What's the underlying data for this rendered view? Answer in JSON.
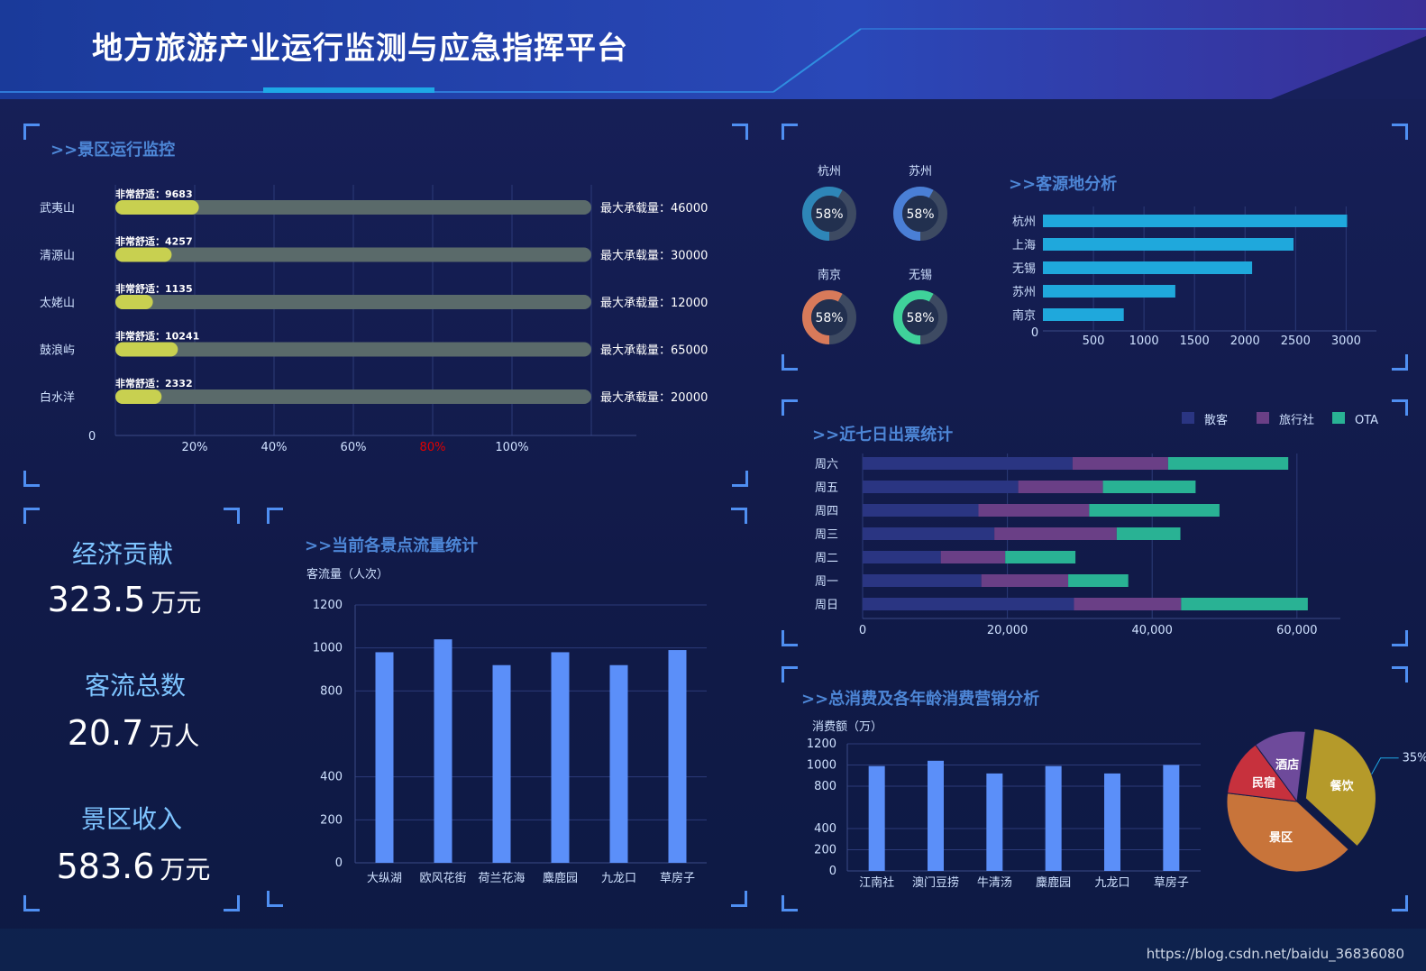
{
  "header": {
    "title": "地方旅游产业运行监测与应急指挥平台"
  },
  "scenic_monitor": {
    "title": ">>景区运行监控",
    "comfort_prefix": "非常舒适：",
    "capacity_prefix": "最大承载量：",
    "zero_label": "0",
    "rows": [
      {
        "name": "武夷山",
        "comfort": 9683,
        "capacity": 46000
      },
      {
        "name": "清源山",
        "comfort": 4257,
        "capacity": 30000
      },
      {
        "name": "太姥山",
        "comfort": 1135,
        "capacity": 12000
      },
      {
        "name": "鼓浪屿",
        "comfort": 10241,
        "capacity": 65000
      },
      {
        "name": "白水洋",
        "comfort": 2332,
        "capacity": 20000
      }
    ],
    "x_ticks": [
      "20%",
      "40%",
      "60%",
      "80%",
      "100%"
    ],
    "highlight_tick": "80%",
    "highlight_color": "#e00000",
    "bar_color": "#c8d050",
    "track_color": "#5a6a6a"
  },
  "stats": [
    {
      "label": "经济贡献",
      "value": "323.5",
      "unit": "万元"
    },
    {
      "label": "客流总数",
      "value": "20.7",
      "unit": "万人"
    },
    {
      "label": "景区收入",
      "value": "583.6",
      "unit": "万元"
    }
  ],
  "flow_panel": {
    "title": ">>当前各景点流量统计"
  },
  "source_panel": {
    "title": ">>客源地分析",
    "donuts": [
      {
        "city": "杭州",
        "label": "58%",
        "value": 0.58,
        "color": "#2e86b8"
      },
      {
        "city": "苏州",
        "label": "58%",
        "value": 0.58,
        "color": "#4a7fd6"
      },
      {
        "city": "南京",
        "label": "58%",
        "value": 0.58,
        "color": "#d87a5a"
      },
      {
        "city": "无锡",
        "label": "58%",
        "value": 0.58,
        "color": "#3fd29a"
      }
    ]
  },
  "tickets_panel": {
    "title": ">>近七日出票统计"
  },
  "consume_panel": {
    "title": ">>总消费及各年龄消费营销分析"
  },
  "chart_data": [
    {
      "type": "bar",
      "title": ">>当前各景点流量统计",
      "ylabel": "客流量（人次）",
      "categories": [
        "大纵湖",
        "欧风花街",
        "荷兰花海",
        "麋鹿园",
        "九龙口",
        "草房子"
      ],
      "values": [
        980,
        1040,
        920,
        980,
        920,
        990
      ],
      "y_ticks": [
        "0",
        "200",
        "400",
        "800",
        "1000",
        "1200"
      ],
      "ylim": [
        0,
        1200
      ],
      "color": "#5b8ff9"
    },
    {
      "type": "bar",
      "orientation": "horizontal",
      "title": ">>客源地分析",
      "categories": [
        "杭州",
        "上海",
        "无锡",
        "苏州",
        "南京"
      ],
      "values": [
        3010,
        2480,
        2070,
        1310,
        800
      ],
      "x_ticks": [
        "500",
        "1000",
        "1500",
        "2000",
        "2500",
        "3000"
      ],
      "zero_label": "0",
      "xlim": [
        0,
        3300
      ],
      "color": "#1fa8dc"
    },
    {
      "type": "bar",
      "orientation": "horizontal",
      "stacked": true,
      "title": ">>近七日出票统计",
      "categories": [
        "周六",
        "周五",
        "周四",
        "周三",
        "周二",
        "周一",
        "周日"
      ],
      "series": [
        {
          "name": "散客",
          "values": [
            29000,
            21500,
            16000,
            18200,
            10800,
            16400,
            29200
          ],
          "color": "#2a3582"
        },
        {
          "name": "旅行社",
          "values": [
            13200,
            11700,
            15300,
            16900,
            8900,
            12000,
            14800
          ],
          "color": "#6a3f86"
        },
        {
          "name": "OTA",
          "values": [
            16600,
            12800,
            18000,
            8800,
            9700,
            8300,
            17500
          ],
          "color": "#29b294"
        }
      ],
      "x_ticks": [
        "0",
        "20,000",
        "40,000",
        "60,000"
      ],
      "xlim": [
        0,
        66000
      ],
      "legend": "top-right"
    },
    {
      "type": "bar",
      "title": ">>总消费及各年龄消费营销分析",
      "ylabel": "消费额（万）",
      "categories": [
        "江南社",
        "澳门豆捞",
        "牛清汤",
        "麋鹿园",
        "九龙口",
        "草房子"
      ],
      "values": [
        990,
        1040,
        920,
        990,
        920,
        1000
      ],
      "y_ticks": [
        "0",
        "200",
        "400",
        "800",
        "1000",
        "1200"
      ],
      "ylim": [
        0,
        1200
      ],
      "color": "#5b8ff9"
    },
    {
      "type": "pie",
      "slices": [
        {
          "name": "餐饮",
          "value": 35,
          "color": "#b59a2a"
        },
        {
          "name": "景区",
          "value": 40,
          "color": "#c8743a"
        },
        {
          "name": "民宿",
          "value": 13,
          "color": "#c7313d"
        },
        {
          "name": "酒店",
          "value": 12,
          "color": "#6e4a9b"
        }
      ],
      "annotation": "35%"
    }
  ],
  "watermark": "https://blog.csdn.net/baidu_36836080"
}
